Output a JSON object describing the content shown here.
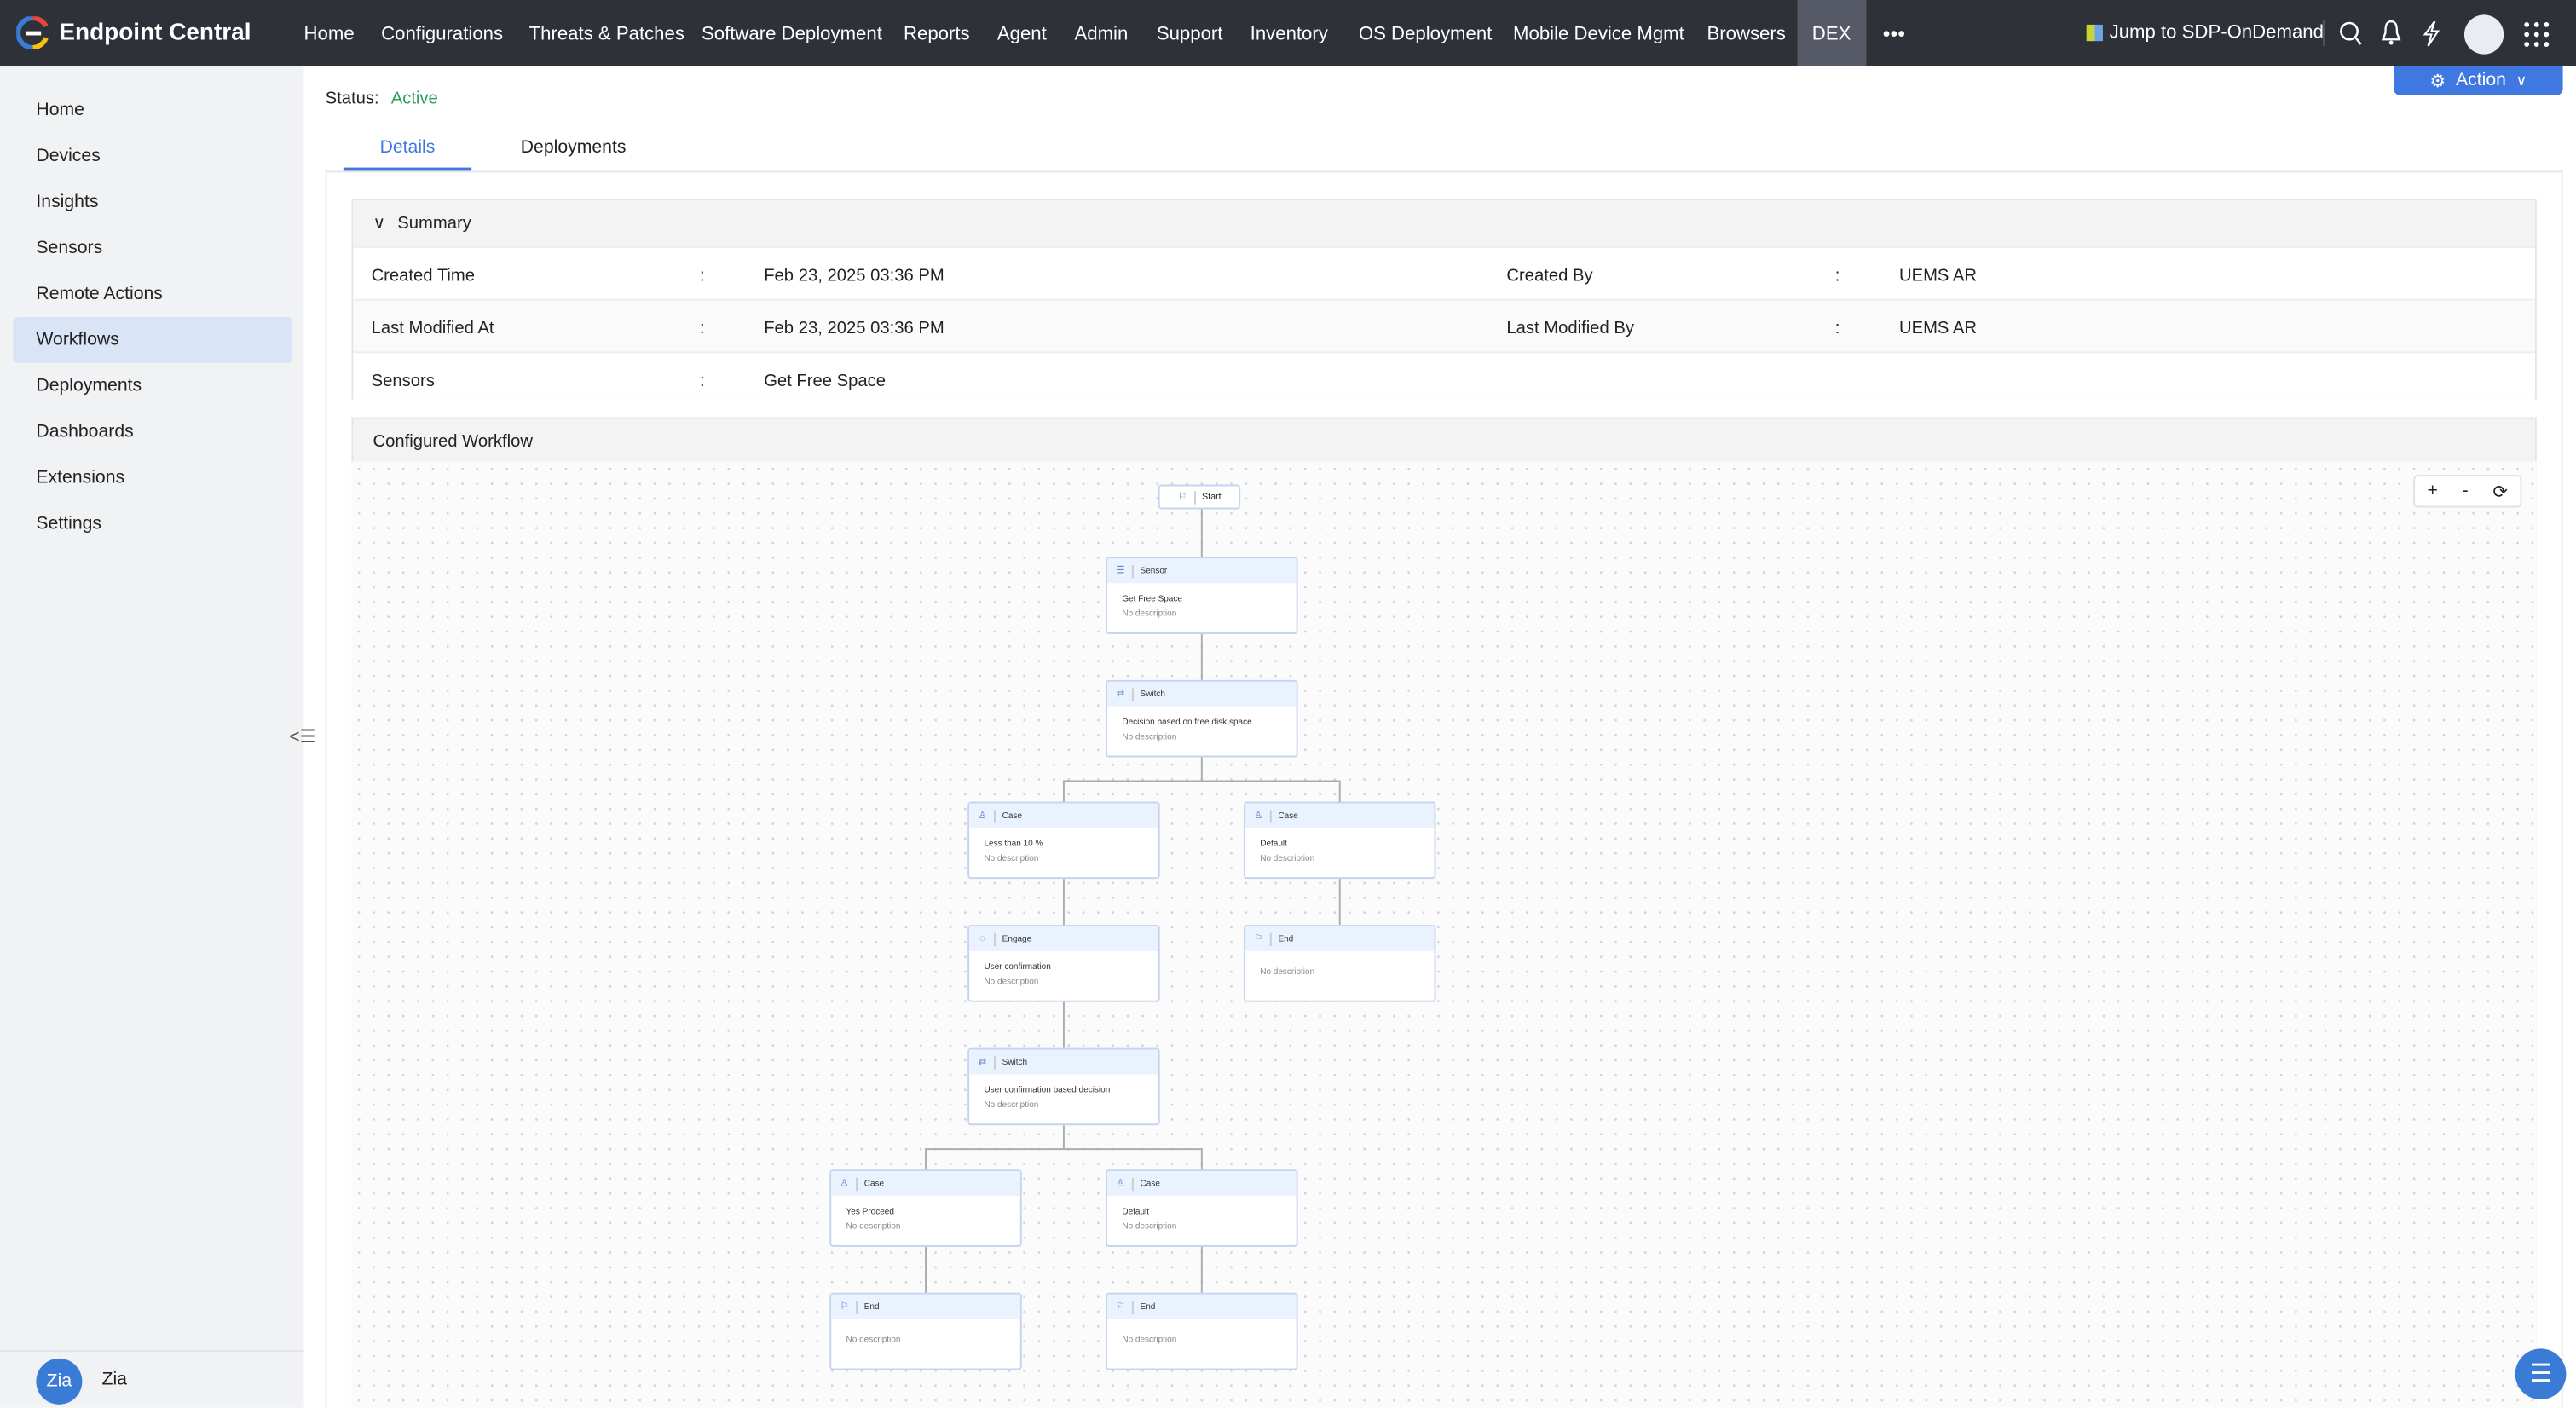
{
  "app": {
    "title": "Endpoint Central",
    "brand_colors": [
      "#e8463c",
      "#f4c20d",
      "#3a7bd5"
    ]
  },
  "topnav": {
    "items": [
      "Home",
      "Configurations",
      "Threats & Patches",
      "Software Deployment",
      "Reports",
      "Agent",
      "Admin",
      "Support",
      "Inventory",
      "OS Deployment",
      "Mobile Device Mgmt",
      "Browsers",
      "DEX"
    ],
    "active": "DEX",
    "more": "•••",
    "jump_label": "Jump to SDP-OnDemand"
  },
  "sidebar": {
    "items": [
      "Home",
      "Devices",
      "Insights",
      "Sensors",
      "Remote Actions",
      "Workflows",
      "Deployments",
      "Dashboards",
      "Extensions",
      "Settings"
    ],
    "active": "Workflows",
    "zia_label": "Zia"
  },
  "header": {
    "status_label": "Status:",
    "status_value": "Active",
    "status_color": "#2e9e5b",
    "action_label": "Action",
    "action_color": "#3f78e0"
  },
  "tabs": [
    {
      "label": "Details",
      "active": true
    },
    {
      "label": "Deployments",
      "active": false
    }
  ],
  "summary": {
    "title": "Summary",
    "rows": [
      {
        "l1": "Created Time",
        "v1": "Feb 23, 2025 03:36 PM",
        "l2": "Created By",
        "v2": "UEMS AR"
      },
      {
        "l1": "Last Modified At",
        "v1": "Feb 23, 2025 03:36 PM",
        "l2": "Last Modified By",
        "v2": "UEMS AR"
      },
      {
        "l1": "Sensors",
        "v1": "Get Free Space",
        "l2": "",
        "v2": ""
      }
    ],
    "colon": ":"
  },
  "workflow": {
    "title": "Configured Workflow",
    "zoom_in": "+",
    "zoom_out": "-",
    "start_label": "Start",
    "nodes": [
      {
        "type": "Sensor",
        "icon": "sensor-icon",
        "title": "Get Free Space",
        "desc": "No description"
      },
      {
        "type": "Switch",
        "icon": "switch-icon",
        "title": "Decision based on free disk space",
        "desc": "No description"
      },
      {
        "type": "Case",
        "icon": "case-icon",
        "title": "Less than 10 %",
        "desc": "No description"
      },
      {
        "type": "Case",
        "icon": "case-icon",
        "title": "Default",
        "desc": "No description"
      },
      {
        "type": "Engage",
        "icon": "engage-icon",
        "title": "User confirmation",
        "desc": "No description"
      },
      {
        "type": "End",
        "icon": "flag-icon",
        "title": "",
        "desc": "No description"
      },
      {
        "type": "Switch",
        "icon": "switch-icon",
        "title": "User confirmation based decision",
        "desc": "No description"
      },
      {
        "type": "Case",
        "icon": "case-icon",
        "title": "Yes Proceed",
        "desc": "No description"
      },
      {
        "type": "Case",
        "icon": "case-icon",
        "title": "Default",
        "desc": "No description"
      },
      {
        "type": "End",
        "icon": "flag-icon",
        "title": "",
        "desc": "No description"
      },
      {
        "type": "End",
        "icon": "flag-icon",
        "title": "",
        "desc": "No description"
      }
    ]
  }
}
